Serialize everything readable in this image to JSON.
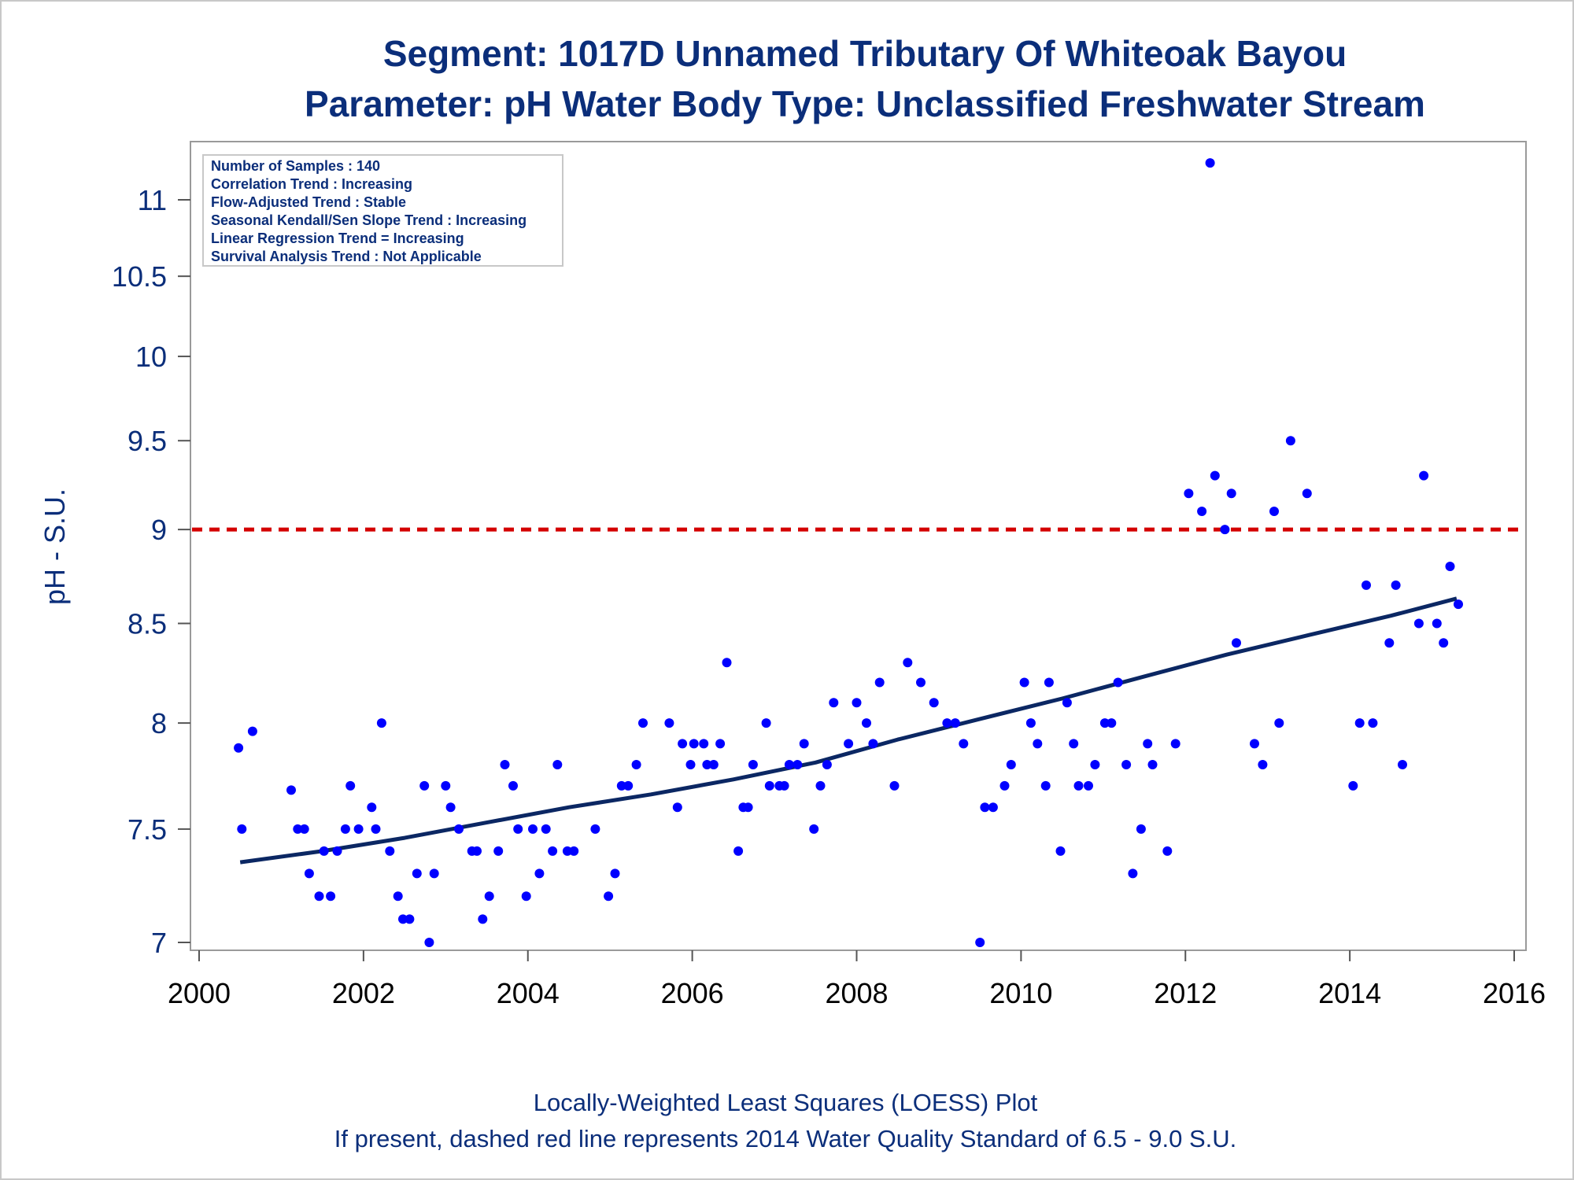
{
  "chart_data": {
    "type": "scatter",
    "title": "Segment: 1017D  Unnamed Tributary Of Whiteoak Bayou",
    "subtitle": "Parameter: pH   Water Body Type: Unclassified Freshwater Stream",
    "xlabel": "",
    "ylabel": "pH - S.U.",
    "x_ticks": [
      "2000",
      "2002",
      "2004",
      "2006",
      "2008",
      "2010",
      "2012",
      "2014",
      "2016"
    ],
    "y_ticks": [
      "7",
      "7.5",
      "8",
      "8.5",
      "9",
      "9.5",
      "10",
      "10.5",
      "11"
    ],
    "xlim": [
      2000,
      2016
    ],
    "ylim": [
      7,
      11.3
    ],
    "y_scale": "log",
    "grid": false,
    "legend_position": "top-left",
    "stats_box": [
      "Number of Samples : 140",
      "Correlation Trend : Increasing",
      "Flow-Adjusted Trend : Stable",
      "Seasonal Kendall/Sen Slope Trend : Increasing",
      "Linear Regression Trend = Increasing",
      "Survival Analysis Trend : Not Applicable"
    ],
    "reference_line": {
      "y": 9.0,
      "style": "dashed",
      "color": "#d40000"
    },
    "series": [
      {
        "type": "scatter",
        "color": "#0000ff",
        "points": [
          [
            2000.48,
            7.88
          ],
          [
            2000.52,
            7.5
          ],
          [
            2000.65,
            7.96
          ],
          [
            2001.12,
            7.68
          ],
          [
            2001.2,
            7.5
          ],
          [
            2001.28,
            7.5
          ],
          [
            2001.34,
            7.3
          ],
          [
            2001.46,
            7.2
          ],
          [
            2001.52,
            7.4
          ],
          [
            2001.6,
            7.2
          ],
          [
            2001.68,
            7.4
          ],
          [
            2001.78,
            7.5
          ],
          [
            2001.84,
            7.7
          ],
          [
            2001.94,
            7.5
          ],
          [
            2002.1,
            7.6
          ],
          [
            2002.15,
            7.5
          ],
          [
            2002.22,
            8.0
          ],
          [
            2002.32,
            7.4
          ],
          [
            2002.42,
            7.2
          ],
          [
            2002.48,
            7.1
          ],
          [
            2002.56,
            7.1
          ],
          [
            2002.65,
            7.3
          ],
          [
            2002.74,
            7.7
          ],
          [
            2002.8,
            7.0
          ],
          [
            2002.86,
            7.3
          ],
          [
            2003.0,
            7.7
          ],
          [
            2003.06,
            7.6
          ],
          [
            2003.16,
            7.5
          ],
          [
            2003.32,
            7.4
          ],
          [
            2003.38,
            7.4
          ],
          [
            2003.45,
            7.1
          ],
          [
            2003.53,
            7.2
          ],
          [
            2003.64,
            7.4
          ],
          [
            2003.72,
            7.8
          ],
          [
            2003.82,
            7.7
          ],
          [
            2003.88,
            7.5
          ],
          [
            2003.98,
            7.2
          ],
          [
            2004.06,
            7.5
          ],
          [
            2004.14,
            7.3
          ],
          [
            2004.22,
            7.5
          ],
          [
            2004.3,
            7.4
          ],
          [
            2004.36,
            7.8
          ],
          [
            2004.48,
            7.4
          ],
          [
            2004.56,
            7.4
          ],
          [
            2004.82,
            7.5
          ],
          [
            2004.98,
            7.2
          ],
          [
            2005.06,
            7.3
          ],
          [
            2005.14,
            7.7
          ],
          [
            2005.22,
            7.7
          ],
          [
            2005.32,
            7.8
          ],
          [
            2005.4,
            8.0
          ],
          [
            2005.72,
            8.0
          ],
          [
            2005.82,
            7.6
          ],
          [
            2005.88,
            7.9
          ],
          [
            2005.98,
            7.8
          ],
          [
            2006.02,
            7.9
          ],
          [
            2006.14,
            7.9
          ],
          [
            2006.18,
            7.8
          ],
          [
            2006.26,
            7.8
          ],
          [
            2006.34,
            7.9
          ],
          [
            2006.42,
            8.3
          ],
          [
            2006.56,
            7.4
          ],
          [
            2006.62,
            7.6
          ],
          [
            2006.68,
            7.6
          ],
          [
            2006.74,
            7.8
          ],
          [
            2006.9,
            8.0
          ],
          [
            2006.94,
            7.7
          ],
          [
            2007.06,
            7.7
          ],
          [
            2007.12,
            7.7
          ],
          [
            2007.18,
            7.8
          ],
          [
            2007.28,
            7.8
          ],
          [
            2007.36,
            7.9
          ],
          [
            2007.48,
            7.5
          ],
          [
            2007.56,
            7.7
          ],
          [
            2007.64,
            7.8
          ],
          [
            2007.72,
            8.1
          ],
          [
            2007.9,
            7.9
          ],
          [
            2008.0,
            8.1
          ],
          [
            2008.12,
            8.0
          ],
          [
            2008.2,
            7.9
          ],
          [
            2008.28,
            8.2
          ],
          [
            2008.46,
            7.7
          ],
          [
            2008.62,
            8.3
          ],
          [
            2008.78,
            8.2
          ],
          [
            2008.94,
            8.1
          ],
          [
            2009.1,
            8.0
          ],
          [
            2009.2,
            8.0
          ],
          [
            2009.3,
            7.9
          ],
          [
            2009.5,
            7.0
          ],
          [
            2009.56,
            7.6
          ],
          [
            2009.66,
            7.6
          ],
          [
            2009.8,
            7.7
          ],
          [
            2009.88,
            7.8
          ],
          [
            2010.04,
            8.2
          ],
          [
            2010.12,
            8.0
          ],
          [
            2010.2,
            7.9
          ],
          [
            2010.3,
            7.7
          ],
          [
            2010.34,
            8.2
          ],
          [
            2010.48,
            7.4
          ],
          [
            2010.56,
            8.1
          ],
          [
            2010.64,
            7.9
          ],
          [
            2010.7,
            7.7
          ],
          [
            2010.82,
            7.7
          ],
          [
            2010.9,
            7.8
          ],
          [
            2011.02,
            8.0
          ],
          [
            2011.1,
            8.0
          ],
          [
            2011.18,
            8.2
          ],
          [
            2011.28,
            7.8
          ],
          [
            2011.36,
            7.3
          ],
          [
            2011.46,
            7.5
          ],
          [
            2011.54,
            7.9
          ],
          [
            2011.6,
            7.8
          ],
          [
            2011.78,
            7.4
          ],
          [
            2011.88,
            7.9
          ],
          [
            2012.04,
            9.2
          ],
          [
            2012.2,
            9.1
          ],
          [
            2012.3,
            11.25
          ],
          [
            2012.36,
            9.3
          ],
          [
            2012.48,
            9.0
          ],
          [
            2012.56,
            9.2
          ],
          [
            2012.62,
            8.4
          ],
          [
            2012.84,
            7.9
          ],
          [
            2012.94,
            7.8
          ],
          [
            2013.08,
            9.1
          ],
          [
            2013.14,
            8.0
          ],
          [
            2013.28,
            9.5
          ],
          [
            2013.48,
            9.2
          ],
          [
            2014.04,
            7.7
          ],
          [
            2014.12,
            8.0
          ],
          [
            2014.2,
            8.7
          ],
          [
            2014.28,
            8.0
          ],
          [
            2014.48,
            8.4
          ],
          [
            2014.56,
            8.7
          ],
          [
            2014.64,
            7.8
          ],
          [
            2014.84,
            8.5
          ],
          [
            2014.9,
            9.3
          ],
          [
            2015.06,
            8.5
          ],
          [
            2015.14,
            8.4
          ],
          [
            2015.22,
            8.8
          ],
          [
            2015.32,
            8.6
          ]
        ]
      },
      {
        "type": "line",
        "color": "#0b2763",
        "points": [
          [
            2000.5,
            7.35
          ],
          [
            2001.5,
            7.4
          ],
          [
            2002.5,
            7.46
          ],
          [
            2003.5,
            7.53
          ],
          [
            2004.5,
            7.6
          ],
          [
            2005.5,
            7.66
          ],
          [
            2006.5,
            7.73
          ],
          [
            2007.5,
            7.81
          ],
          [
            2008.5,
            7.92
          ],
          [
            2009.5,
            8.02
          ],
          [
            2010.5,
            8.12
          ],
          [
            2011.5,
            8.23
          ],
          [
            2012.5,
            8.34
          ],
          [
            2013.5,
            8.44
          ],
          [
            2014.5,
            8.54
          ],
          [
            2015.3,
            8.63
          ]
        ]
      }
    ]
  },
  "footer": {
    "line1": "Locally-Weighted Least Squares (LOESS) Plot",
    "line2": "If present, dashed red line represents 2014 Water Quality Standard of 6.5 - 9.0 S.U."
  },
  "colors": {
    "title": "#0b2e7a",
    "points": "#0000ff",
    "trend": "#0b2763",
    "reference": "#d40000",
    "frame": "#9a9a9a"
  }
}
